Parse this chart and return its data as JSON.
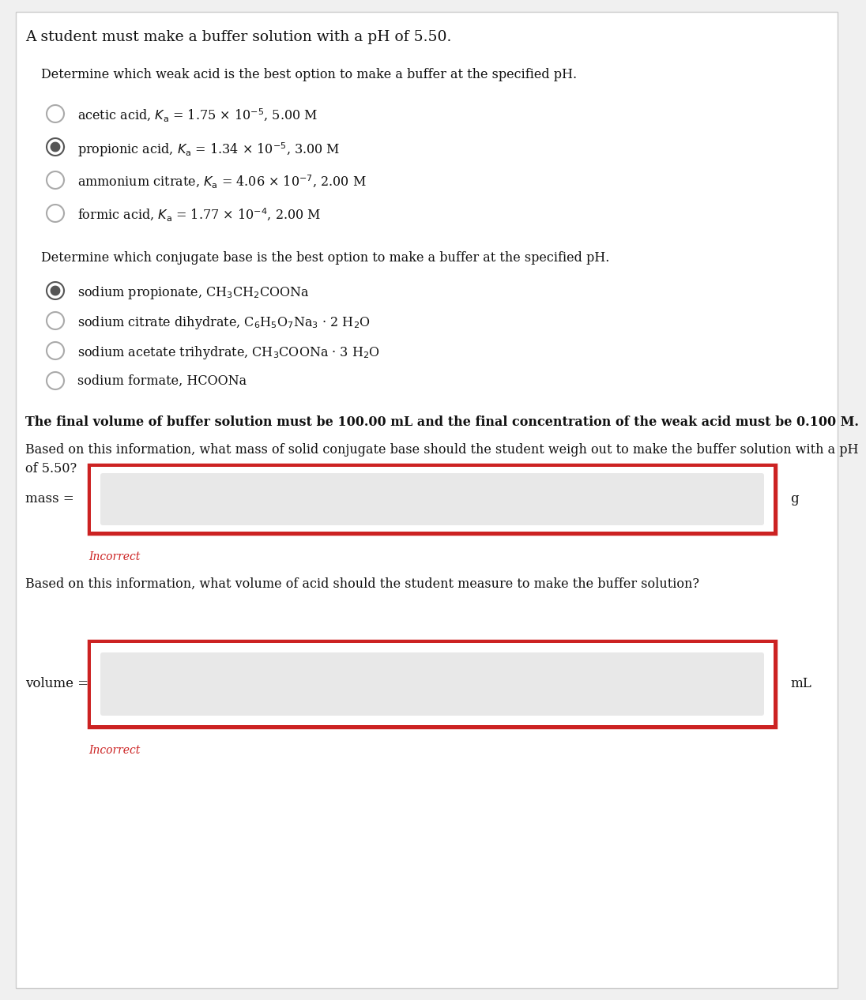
{
  "title": "A student must make a buffer solution with a pH of 5.50.",
  "section1_header": "Determine which weak acid is the best option to make a buffer at the specified pH.",
  "weak_acids": [
    {
      "text": "acetic acid, $K_\\mathrm{a}$ = 1.75 × 10$^{-5}$, 5.00 M",
      "selected": false
    },
    {
      "text": "propionic acid, $K_\\mathrm{a}$ = 1.34 × 10$^{-5}$, 3.00 M",
      "selected": true
    },
    {
      "text": "ammonium citrate, $K_\\mathrm{a}$ = 4.06 × 10$^{-7}$, 2.00 M",
      "selected": false
    },
    {
      "text": "formic acid, $K_\\mathrm{a}$ = 1.77 × 10$^{-4}$, 2.00 M",
      "selected": false
    }
  ],
  "section2_header": "Determine which conjugate base is the best option to make a buffer at the specified pH.",
  "conjugate_bases": [
    {
      "text": "sodium propionate, CH$_3$CH$_2$COONa",
      "selected": true
    },
    {
      "text": "sodium citrate dihydrate, C$_6$H$_5$O$_7$Na$_3$ · 2 H$_2$O",
      "selected": false
    },
    {
      "text": "sodium acetate trihydrate, CH$_3$COONa · 3 H$_2$O",
      "selected": false
    },
    {
      "text": "sodium formate, HCOONa",
      "selected": false
    }
  ],
  "info_text": "The final volume of buffer solution must be 100.00 mL and the final concentration of the weak acid must be 0.100 M.",
  "mass_question": "Based on this information, what mass of solid conjugate base should the student weigh out to make the buffer solution with a pH\nof 5.50?",
  "mass_label": "mass =",
  "mass_unit": "g",
  "volume_question": "Based on this information, what volume of acid should the student measure to make the buffer solution?",
  "volume_label": "volume =",
  "volume_unit": "mL",
  "incorrect_text": "Incorrect",
  "bg_color": "#f0f0f0",
  "panel_bg": "#ffffff",
  "input_outer_bg": "#ffffff",
  "input_inner_bg": "#e8e8e8",
  "border_color": "#cc2222",
  "incorrect_color": "#cc2222",
  "text_color": "#111111"
}
